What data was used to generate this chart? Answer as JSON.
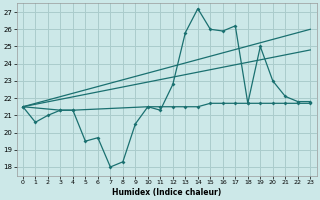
{
  "title": "",
  "xlabel": "Humidex (Indice chaleur)",
  "background_color": "#cce8e8",
  "grid_color": "#aacccc",
  "line_color": "#1a7070",
  "xlim": [
    -0.5,
    23.5
  ],
  "ylim": [
    17.5,
    27.5
  ],
  "xticks": [
    0,
    1,
    2,
    3,
    4,
    5,
    6,
    7,
    8,
    9,
    10,
    11,
    12,
    13,
    14,
    15,
    16,
    17,
    18,
    19,
    20,
    21,
    22,
    23
  ],
  "yticks": [
    18,
    19,
    20,
    21,
    22,
    23,
    24,
    25,
    26,
    27
  ],
  "series1_x": [
    0,
    1,
    2,
    3,
    4,
    5,
    6,
    7,
    8,
    9,
    10,
    11,
    12,
    13,
    14,
    15,
    16,
    17,
    18,
    19,
    20,
    21,
    22,
    23
  ],
  "series1_y": [
    21.5,
    20.6,
    21.0,
    21.3,
    21.3,
    19.5,
    19.7,
    18.0,
    18.3,
    20.5,
    21.5,
    21.3,
    22.8,
    25.8,
    27.2,
    26.0,
    25.9,
    26.2,
    21.7,
    25.0,
    23.0,
    22.1,
    21.8,
    21.8
  ],
  "flat_x": [
    0,
    3,
    4,
    10,
    11,
    12,
    13,
    14,
    15,
    16,
    17,
    18,
    19,
    20,
    21,
    22,
    23
  ],
  "flat_y": [
    21.5,
    21.3,
    21.3,
    21.5,
    21.5,
    21.5,
    21.5,
    21.5,
    21.7,
    21.7,
    21.7,
    21.7,
    21.7,
    21.7,
    21.7,
    21.7,
    21.7
  ],
  "trend1_x": [
    0,
    23
  ],
  "trend1_y": [
    21.5,
    26.0
  ],
  "trend2_x": [
    0,
    23
  ],
  "trend2_y": [
    21.5,
    24.8
  ]
}
